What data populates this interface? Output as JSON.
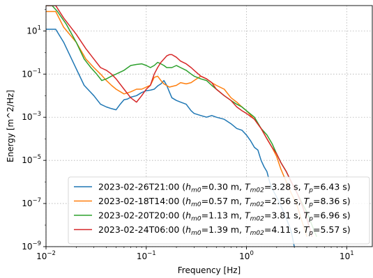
{
  "chart_data": {
    "type": "line",
    "xlabel": "Frequency [Hz]",
    "ylabel": "Energy [m^2/Hz]",
    "xscale": "log",
    "yscale": "log",
    "xlim": [
      0.01,
      18
    ],
    "ylim": [
      1e-09,
      150
    ],
    "grid": true,
    "legend_position": "bottom-right",
    "x_ticks": [
      {
        "value": 0.01,
        "base": "10",
        "exp": "−2"
      },
      {
        "value": 0.1,
        "base": "10",
        "exp": "−1"
      },
      {
        "value": 1,
        "base": "10",
        "exp": "0"
      },
      {
        "value": 10,
        "base": "10",
        "exp": "1"
      }
    ],
    "y_ticks": [
      {
        "value": 1e-09,
        "base": "10",
        "exp": "−9"
      },
      {
        "value": 1e-07,
        "base": "10",
        "exp": "−7"
      },
      {
        "value": 1e-05,
        "base": "10",
        "exp": "−5"
      },
      {
        "value": 0.001,
        "base": "10",
        "exp": "−3"
      },
      {
        "value": 0.1,
        "base": "10",
        "exp": "−1"
      },
      {
        "value": 10,
        "base": "10",
        "exp": "1"
      }
    ],
    "series": [
      {
        "name": "2023-02-26T21:00",
        "label_parts": {
          "date": "2023-02-26T21:00",
          "hm0": "0.30 m",
          "tm02": "3.28 s",
          "tp": "6.43 s"
        },
        "color": "#1f77b4",
        "points": [
          [
            0.01,
            12
          ],
          [
            0.0125,
            12
          ],
          [
            0.015,
            3
          ],
          [
            0.018,
            0.5
          ],
          [
            0.024,
            0.03
          ],
          [
            0.03,
            0.01
          ],
          [
            0.035,
            0.004
          ],
          [
            0.04,
            0.003
          ],
          [
            0.045,
            0.0025
          ],
          [
            0.05,
            0.0022
          ],
          [
            0.055,
            0.004
          ],
          [
            0.06,
            0.0065
          ],
          [
            0.065,
            0.007
          ],
          [
            0.07,
            0.0085
          ],
          [
            0.08,
            0.01
          ],
          [
            0.09,
            0.014
          ],
          [
            0.1,
            0.017
          ],
          [
            0.11,
            0.018
          ],
          [
            0.12,
            0.02
          ],
          [
            0.13,
            0.028
          ],
          [
            0.14,
            0.035
          ],
          [
            0.15,
            0.05
          ],
          [
            0.16,
            0.03
          ],
          [
            0.17,
            0.015
          ],
          [
            0.18,
            0.008
          ],
          [
            0.2,
            0.006
          ],
          [
            0.22,
            0.005
          ],
          [
            0.25,
            0.004
          ],
          [
            0.28,
            0.002
          ],
          [
            0.3,
            0.0015
          ],
          [
            0.35,
            0.0012
          ],
          [
            0.4,
            0.001
          ],
          [
            0.45,
            0.0012
          ],
          [
            0.5,
            0.001
          ],
          [
            0.6,
            0.0008
          ],
          [
            0.7,
            0.0005
          ],
          [
            0.8,
            0.0003
          ],
          [
            0.9,
            0.00025
          ],
          [
            1.0,
            0.00015
          ],
          [
            1.1,
            8e-05
          ],
          [
            1.2,
            4e-05
          ],
          [
            1.3,
            3e-05
          ],
          [
            1.4,
            1e-05
          ],
          [
            1.5,
            5e-06
          ],
          [
            1.6,
            3e-06
          ],
          [
            1.7,
            1e-06
          ],
          [
            1.8,
            5e-07
          ],
          [
            2.0,
            2e-07
          ],
          [
            2.2,
            8e-08
          ],
          [
            2.5,
            2e-08
          ],
          [
            2.8,
            5e-09
          ],
          [
            3.0,
            1e-09
          ]
        ]
      },
      {
        "name": "2023-02-18T14:00",
        "label_parts": {
          "date": "2023-02-18T14:00",
          "hm0": "0.57 m",
          "tm02": "2.56 s",
          "tp": "8.36 s"
        },
        "color": "#ff7f0e",
        "points": [
          [
            0.01,
            80
          ],
          [
            0.0125,
            80
          ],
          [
            0.015,
            15
          ],
          [
            0.02,
            3
          ],
          [
            0.025,
            0.5
          ],
          [
            0.03,
            0.2
          ],
          [
            0.035,
            0.1
          ],
          [
            0.04,
            0.05
          ],
          [
            0.045,
            0.03
          ],
          [
            0.05,
            0.02
          ],
          [
            0.06,
            0.012
          ],
          [
            0.07,
            0.015
          ],
          [
            0.08,
            0.02
          ],
          [
            0.09,
            0.02
          ],
          [
            0.1,
            0.025
          ],
          [
            0.11,
            0.03
          ],
          [
            0.12,
            0.07
          ],
          [
            0.13,
            0.08
          ],
          [
            0.14,
            0.05
          ],
          [
            0.15,
            0.035
          ],
          [
            0.17,
            0.025
          ],
          [
            0.2,
            0.03
          ],
          [
            0.22,
            0.04
          ],
          [
            0.25,
            0.035
          ],
          [
            0.28,
            0.04
          ],
          [
            0.3,
            0.05
          ],
          [
            0.35,
            0.08
          ],
          [
            0.4,
            0.06
          ],
          [
            0.45,
            0.04
          ],
          [
            0.5,
            0.03
          ],
          [
            0.6,
            0.02
          ],
          [
            0.7,
            0.008
          ],
          [
            0.8,
            0.005
          ],
          [
            0.9,
            0.003
          ],
          [
            1.0,
            0.002
          ],
          [
            1.2,
            0.0008
          ],
          [
            1.4,
            0.0003
          ],
          [
            1.6,
            0.0001
          ],
          [
            1.8,
            4e-05
          ],
          [
            2.0,
            1.5e-05
          ],
          [
            2.2,
            4e-06
          ],
          [
            2.5,
            1e-06
          ],
          [
            2.8,
            3e-07
          ],
          [
            3.2,
            8e-08
          ],
          [
            3.5,
            2e-08
          ],
          [
            4.0,
            3e-09
          ]
        ]
      },
      {
        "name": "2023-02-20T20:00",
        "label_parts": {
          "date": "2023-02-20T20:00",
          "hm0": "1.13 m",
          "tm02": "3.81 s",
          "tp": "6.96 s"
        },
        "color": "#2ca02c",
        "points": [
          [
            0.01,
            150
          ],
          [
            0.0115,
            150
          ],
          [
            0.013,
            80
          ],
          [
            0.016,
            20
          ],
          [
            0.02,
            3
          ],
          [
            0.024,
            0.5
          ],
          [
            0.028,
            0.2
          ],
          [
            0.032,
            0.1
          ],
          [
            0.036,
            0.05
          ],
          [
            0.04,
            0.06
          ],
          [
            0.045,
            0.08
          ],
          [
            0.05,
            0.1
          ],
          [
            0.06,
            0.15
          ],
          [
            0.07,
            0.25
          ],
          [
            0.08,
            0.28
          ],
          [
            0.09,
            0.3
          ],
          [
            0.1,
            0.25
          ],
          [
            0.11,
            0.2
          ],
          [
            0.12,
            0.25
          ],
          [
            0.13,
            0.35
          ],
          [
            0.14,
            0.3
          ],
          [
            0.15,
            0.25
          ],
          [
            0.16,
            0.2
          ],
          [
            0.18,
            0.2
          ],
          [
            0.2,
            0.25
          ],
          [
            0.22,
            0.2
          ],
          [
            0.25,
            0.15
          ],
          [
            0.28,
            0.1
          ],
          [
            0.3,
            0.08
          ],
          [
            0.35,
            0.06
          ],
          [
            0.4,
            0.05
          ],
          [
            0.45,
            0.03
          ],
          [
            0.5,
            0.02
          ],
          [
            0.6,
            0.01
          ],
          [
            0.7,
            0.006
          ],
          [
            0.8,
            0.004
          ],
          [
            0.9,
            0.003
          ],
          [
            1.0,
            0.002
          ],
          [
            1.2,
            0.001
          ],
          [
            1.4,
            0.0003
          ],
          [
            1.6,
            0.00015
          ],
          [
            1.8,
            6e-05
          ],
          [
            2.0,
            2e-05
          ],
          [
            2.2,
            8e-06
          ],
          [
            2.5,
            3e-06
          ],
          [
            2.8,
            1e-06
          ],
          [
            3.2,
            3e-07
          ],
          [
            3.6,
            1e-07
          ],
          [
            4.0,
            4e-08
          ],
          [
            4.5,
            1e-08
          ],
          [
            5.0,
            3e-09
          ]
        ]
      },
      {
        "name": "2023-02-24T06:00",
        "label_parts": {
          "date": "2023-02-24T06:00",
          "hm0": "1.39 m",
          "tm02": "4.11 s",
          "tp": "5.57 s"
        },
        "color": "#d62728",
        "points": [
          [
            0.01,
            150
          ],
          [
            0.0125,
            150
          ],
          [
            0.015,
            40
          ],
          [
            0.02,
            7
          ],
          [
            0.025,
            1.5
          ],
          [
            0.03,
            0.5
          ],
          [
            0.035,
            0.2
          ],
          [
            0.04,
            0.15
          ],
          [
            0.045,
            0.1
          ],
          [
            0.05,
            0.06
          ],
          [
            0.06,
            0.02
          ],
          [
            0.07,
            0.008
          ],
          [
            0.08,
            0.005
          ],
          [
            0.09,
            0.01
          ],
          [
            0.1,
            0.02
          ],
          [
            0.11,
            0.03
          ],
          [
            0.12,
            0.1
          ],
          [
            0.13,
            0.2
          ],
          [
            0.14,
            0.35
          ],
          [
            0.15,
            0.5
          ],
          [
            0.16,
            0.7
          ],
          [
            0.17,
            0.8
          ],
          [
            0.18,
            0.8
          ],
          [
            0.2,
            0.6
          ],
          [
            0.22,
            0.4
          ],
          [
            0.25,
            0.3
          ],
          [
            0.28,
            0.2
          ],
          [
            0.3,
            0.15
          ],
          [
            0.35,
            0.08
          ],
          [
            0.4,
            0.06
          ],
          [
            0.45,
            0.04
          ],
          [
            0.5,
            0.02
          ],
          [
            0.6,
            0.01
          ],
          [
            0.7,
            0.006
          ],
          [
            0.8,
            0.003
          ],
          [
            0.9,
            0.002
          ],
          [
            1.0,
            0.0015
          ],
          [
            1.2,
            0.0008
          ],
          [
            1.4,
            0.0003
          ],
          [
            1.6,
            0.0001
          ],
          [
            1.8,
            4e-05
          ],
          [
            2.0,
            2e-05
          ],
          [
            2.2,
            8e-06
          ],
          [
            2.5,
            3e-06
          ],
          [
            2.8,
            1e-06
          ],
          [
            3.2,
            3e-07
          ],
          [
            3.6,
            8e-08
          ],
          [
            4.0,
            2e-08
          ],
          [
            4.5,
            3e-09
          ]
        ]
      }
    ]
  }
}
